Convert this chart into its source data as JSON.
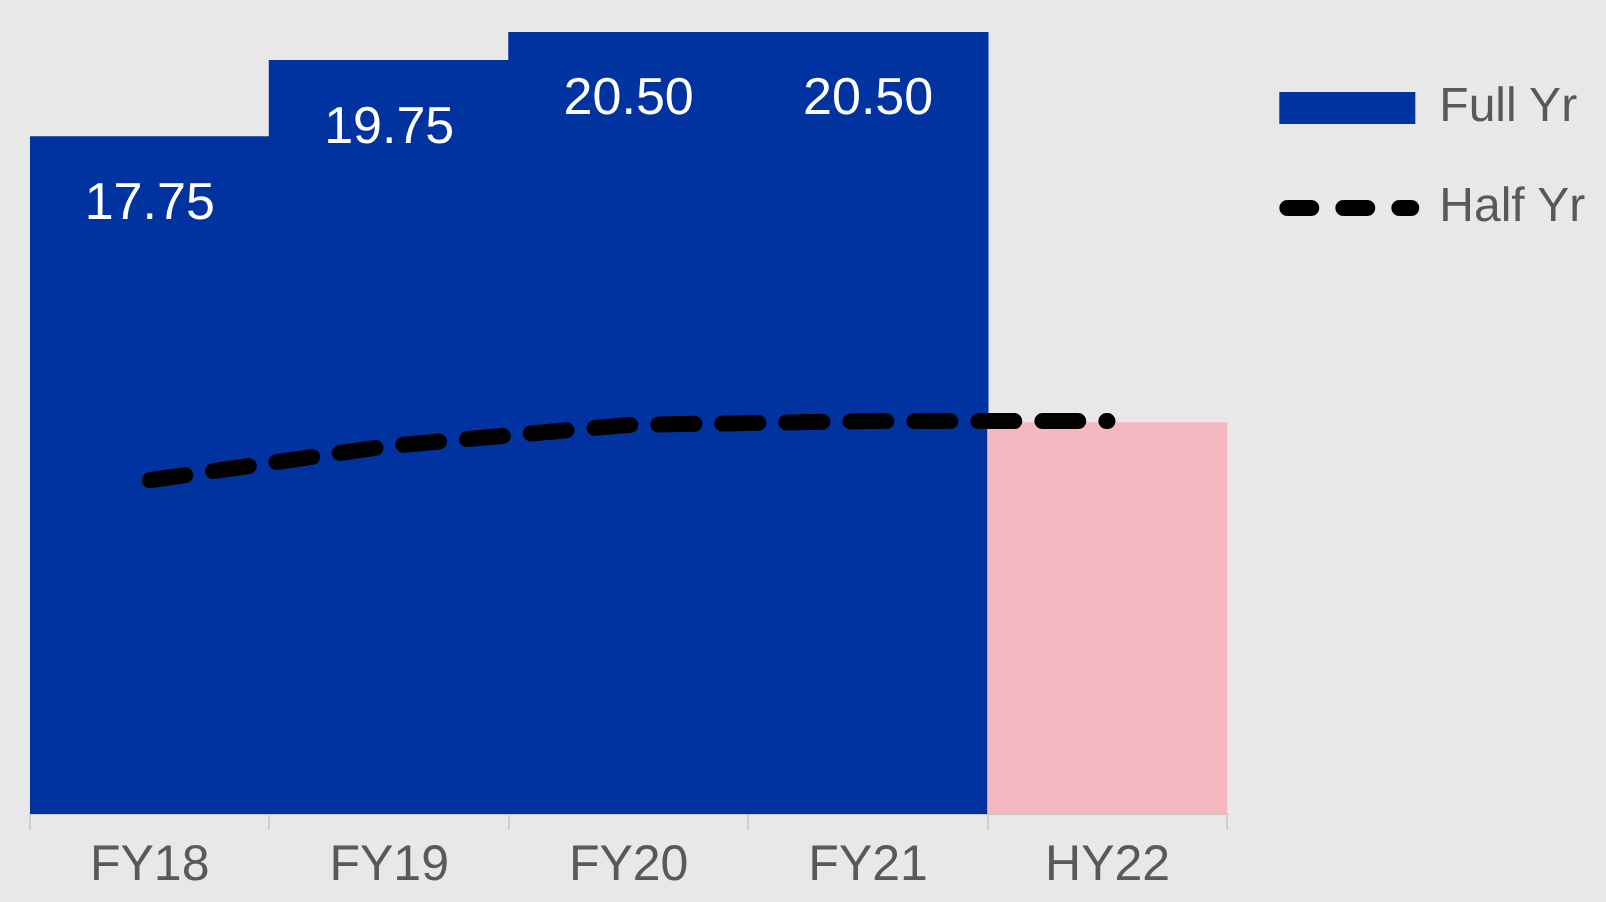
{
  "chart_data": {
    "type": "bar",
    "categories": [
      "FY18",
      "FY19",
      "FY20",
      "FY21",
      "HY22"
    ],
    "series": [
      {
        "name": "Full Yr",
        "colors": [
          "#0033a0",
          "#0033a0",
          "#0033a0",
          "#0033a0",
          "#f6b8c0"
        ],
        "values": [
          17.75,
          19.75,
          20.5,
          20.5,
          10.25
        ],
        "value_labels": [
          "17.75",
          "19.75",
          "20.50",
          "20.50",
          null
        ]
      },
      {
        "name": "Half Yr",
        "type": "line",
        "color": "#000000",
        "line_style": "dashed",
        "marker": "none",
        "values": [
          8.75,
          9.65,
          10.2,
          10.3,
          10.3
        ]
      }
    ],
    "legend": "right",
    "grid": false,
    "tick_labels": "x"
  }
}
